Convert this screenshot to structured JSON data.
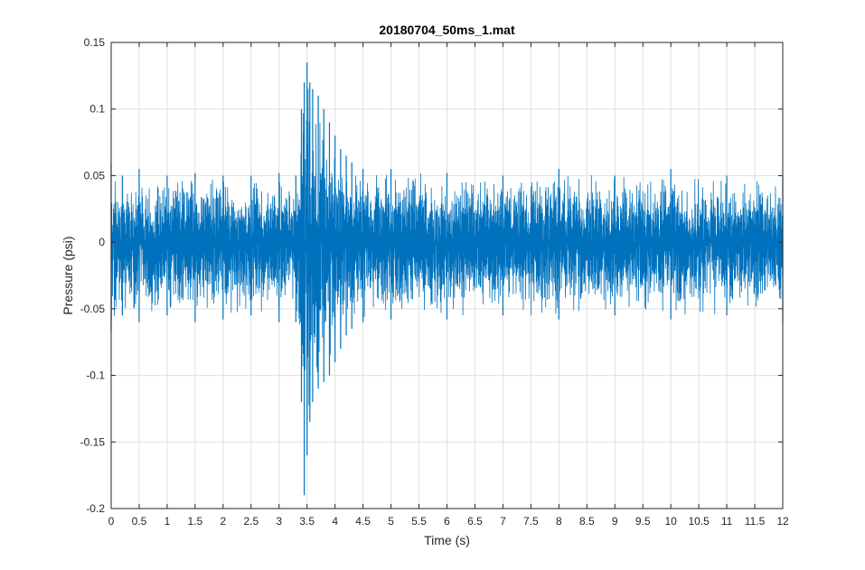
{
  "chart_data": {
    "type": "line",
    "title": "20180704_50ms_1.mat",
    "xlabel": "Time (s)",
    "ylabel": "Pressure (psi)",
    "xlim": [
      0,
      12
    ],
    "ylim": [
      -0.2,
      0.15
    ],
    "grid": true,
    "x_ticks": [
      0,
      0.5,
      1,
      1.5,
      2,
      2.5,
      3,
      3.5,
      4,
      4.5,
      5,
      5.5,
      6,
      6.5,
      7,
      7.5,
      8,
      8.5,
      9,
      9.5,
      10,
      10.5,
      11,
      11.5,
      12
    ],
    "y_ticks": [
      -0.2,
      -0.15,
      -0.1,
      -0.05,
      0,
      0.05,
      0.1,
      0.15
    ],
    "x_tick_labels": [
      "0",
      "0.5",
      "1",
      "1.5",
      "2",
      "2.5",
      "3",
      "3.5",
      "4",
      "4.5",
      "5",
      "5.5",
      "6",
      "6.5",
      "7",
      "7.5",
      "8",
      "8.5",
      "9",
      "9.5",
      "10",
      "10.5",
      "11",
      "11.5",
      "12"
    ],
    "y_tick_labels": [
      "-0.2",
      "-0.15",
      "-0.1",
      "-0.05",
      "0",
      "0.05",
      "0.1",
      "0.15"
    ],
    "series": [
      {
        "color": "#0072BD",
        "description_points": {
          "x": [
            0,
            0.2,
            0.5,
            1,
            1.5,
            2,
            2.5,
            3,
            3.3,
            3.4,
            3.45,
            3.5,
            3.55,
            3.6,
            3.7,
            3.8,
            3.9,
            4.0,
            4.1,
            4.2,
            4.3,
            4.5,
            5,
            6,
            7,
            8,
            9,
            10,
            11,
            12
          ],
          "upper_envelope": [
            0.06,
            0.05,
            0.055,
            0.05,
            0.052,
            0.05,
            0.05,
            0.052,
            0.05,
            0.1,
            0.12,
            0.135,
            0.12,
            0.115,
            0.11,
            0.1,
            0.09,
            0.08,
            0.07,
            0.065,
            0.06,
            0.055,
            0.055,
            0.052,
            0.05,
            0.055,
            0.05,
            0.055,
            0.05,
            0.05
          ],
          "lower_envelope": [
            -0.068,
            -0.055,
            -0.06,
            -0.055,
            -0.06,
            -0.058,
            -0.055,
            -0.06,
            -0.06,
            -0.12,
            -0.19,
            -0.16,
            -0.135,
            -0.12,
            -0.11,
            -0.105,
            -0.1,
            -0.09,
            -0.08,
            -0.07,
            -0.065,
            -0.06,
            -0.058,
            -0.058,
            -0.055,
            -0.058,
            -0.055,
            -0.058,
            -0.055,
            -0.06
          ]
        }
      }
    ]
  }
}
